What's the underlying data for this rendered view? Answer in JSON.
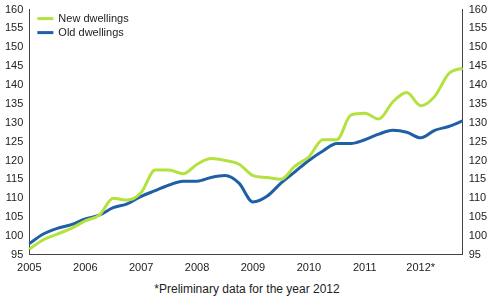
{
  "chart_data": {
    "type": "line",
    "footnote": "*Preliminary data for the year 2012",
    "categories": [
      "2005",
      null,
      null,
      null,
      "2006",
      null,
      null,
      null,
      "2007",
      null,
      null,
      null,
      "2008",
      null,
      null,
      null,
      "2009",
      null,
      null,
      null,
      "2010",
      null,
      null,
      null,
      "2011",
      null,
      null,
      null,
      "2012*",
      null,
      null,
      null
    ],
    "series": [
      {
        "name": "New dwellings",
        "color": "#b3e23f",
        "values": [
          96.5,
          99,
          100.5,
          102,
          104,
          105.5,
          110,
          109.5,
          111.5,
          117.5,
          117.5,
          116.5,
          119,
          120.5,
          120,
          119,
          116,
          115.5,
          115,
          118.5,
          121,
          125.5,
          125.5,
          132,
          132.5,
          131,
          135.5,
          138,
          134.5,
          137,
          143,
          144.5
        ]
      },
      {
        "name": "Old dwellings",
        "color": "#1f5fa6",
        "values": [
          98,
          100.5,
          102,
          103,
          104.5,
          105.5,
          107.5,
          108.5,
          110.5,
          112,
          113.5,
          114.5,
          114.5,
          115.5,
          116,
          114,
          109,
          110.5,
          114,
          117,
          120,
          122.5,
          124.5,
          124.5,
          125.5,
          127,
          128,
          127.5,
          126,
          128,
          129,
          130.5
        ]
      }
    ],
    "ylim": [
      95,
      160
    ],
    "yticks": [
      95,
      100,
      105,
      110,
      115,
      120,
      125,
      130,
      135,
      140,
      145,
      150,
      155,
      160
    ],
    "grid": false,
    "legend": "upper left"
  }
}
